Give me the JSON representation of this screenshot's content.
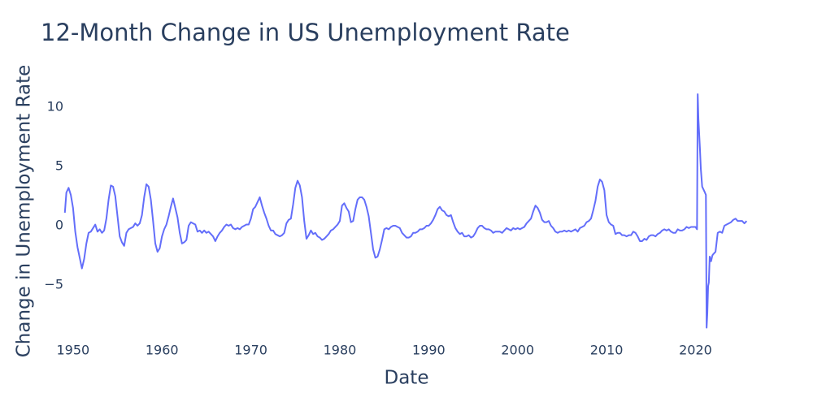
{
  "chart_data": {
    "type": "line",
    "title": "12-Month Change in US Unemployment Rate",
    "x_label": "Date",
    "y_label": "Change in Unemployment Rate",
    "color": "#636efa",
    "xlim": [
      1949.1,
      2025.9
    ],
    "ylim": [
      -8.7,
      11.2
    ],
    "xticks": [
      1950,
      1960,
      1970,
      1980,
      1990,
      2000,
      2010,
      2020
    ],
    "yticks": [
      10,
      5,
      0,
      {
        "value": -5,
        "label": "−5"
      }
    ],
    "grid": false,
    "x": [
      1949.08,
      1949.25,
      1949.5,
      1949.75,
      1950,
      1950.25,
      1950.5,
      1950.75,
      1951,
      1951.25,
      1951.5,
      1951.75,
      1952,
      1952.25,
      1952.5,
      1952.75,
      1953,
      1953.25,
      1953.5,
      1953.75,
      1954,
      1954.25,
      1954.5,
      1954.75,
      1955,
      1955.25,
      1955.5,
      1955.75,
      1956,
      1956.25,
      1956.5,
      1956.75,
      1957,
      1957.25,
      1957.5,
      1957.75,
      1958,
      1958.25,
      1958.5,
      1958.75,
      1959,
      1959.25,
      1959.5,
      1959.75,
      1960,
      1960.25,
      1960.5,
      1960.75,
      1961,
      1961.25,
      1961.5,
      1961.75,
      1962,
      1962.25,
      1962.5,
      1962.75,
      1963,
      1963.25,
      1963.5,
      1963.75,
      1964,
      1964.25,
      1964.5,
      1964.75,
      1965,
      1965.25,
      1965.5,
      1965.75,
      1966,
      1966.25,
      1966.5,
      1966.75,
      1967,
      1967.25,
      1967.5,
      1967.75,
      1968,
      1968.25,
      1968.5,
      1968.75,
      1969,
      1969.25,
      1969.5,
      1969.75,
      1970,
      1970.25,
      1970.5,
      1970.75,
      1971,
      1971.25,
      1971.5,
      1971.75,
      1972,
      1972.25,
      1972.5,
      1972.75,
      1973,
      1973.25,
      1973.5,
      1973.75,
      1974,
      1974.25,
      1974.5,
      1974.75,
      1975,
      1975.25,
      1975.5,
      1975.75,
      1976,
      1976.25,
      1976.5,
      1976.75,
      1977,
      1977.25,
      1977.5,
      1977.75,
      1978,
      1978.25,
      1978.5,
      1978.75,
      1979,
      1979.25,
      1979.5,
      1979.75,
      1980,
      1980.25,
      1980.5,
      1980.75,
      1981,
      1981.25,
      1981.5,
      1981.75,
      1982,
      1982.25,
      1982.5,
      1982.75,
      1983,
      1983.25,
      1983.5,
      1983.75,
      1984,
      1984.25,
      1984.5,
      1984.75,
      1985,
      1985.25,
      1985.5,
      1985.75,
      1986,
      1986.25,
      1986.5,
      1986.75,
      1987,
      1987.25,
      1987.5,
      1987.75,
      1988,
      1988.25,
      1988.5,
      1988.75,
      1989,
      1989.25,
      1989.5,
      1989.75,
      1990,
      1990.25,
      1990.5,
      1990.75,
      1991,
      1991.25,
      1991.5,
      1991.75,
      1992,
      1992.25,
      1992.5,
      1992.75,
      1993,
      1993.25,
      1993.5,
      1993.75,
      1994,
      1994.25,
      1994.5,
      1994.75,
      1995,
      1995.25,
      1995.5,
      1995.75,
      1996,
      1996.25,
      1996.5,
      1996.75,
      1997,
      1997.25,
      1997.5,
      1997.75,
      1998,
      1998.25,
      1998.5,
      1998.75,
      1999,
      1999.25,
      1999.5,
      1999.75,
      2000,
      2000.25,
      2000.5,
      2000.75,
      2001,
      2001.25,
      2001.5,
      2001.75,
      2002,
      2002.25,
      2002.5,
      2002.75,
      2003,
      2003.25,
      2003.5,
      2003.75,
      2004,
      2004.25,
      2004.5,
      2004.75,
      2005,
      2005.25,
      2005.5,
      2005.75,
      2006,
      2006.25,
      2006.5,
      2006.75,
      2007,
      2007.25,
      2007.5,
      2007.75,
      2008,
      2008.25,
      2008.5,
      2008.75,
      2009,
      2009.25,
      2009.5,
      2009.75,
      2010,
      2010.25,
      2010.5,
      2010.75,
      2011,
      2011.25,
      2011.5,
      2011.75,
      2012,
      2012.25,
      2012.5,
      2012.75,
      2013,
      2013.25,
      2013.5,
      2013.75,
      2014,
      2014.25,
      2014.5,
      2014.75,
      2015,
      2015.25,
      2015.5,
      2015.75,
      2016,
      2016.25,
      2016.5,
      2016.75,
      2017,
      2017.25,
      2017.5,
      2017.75,
      2018,
      2018.25,
      2018.5,
      2018.75,
      2019,
      2019.25,
      2019.5,
      2019.75,
      2020,
      2020.17,
      2020.25,
      2020.33,
      2020.5,
      2020.6,
      2020.75,
      2021,
      2021.17,
      2021.25,
      2021.33,
      2021.42,
      2021.5,
      2021.6,
      2021.75,
      2021.9,
      2022,
      2022.25,
      2022.5,
      2022.75,
      2023,
      2023.25,
      2023.5,
      2023.75,
      2024,
      2024.25,
      2024.5,
      2024.75,
      2025,
      2025.25,
      2025.5,
      2025.75
    ],
    "values": [
      1.1,
      2.8,
      3.2,
      2.6,
      1.5,
      -0.5,
      -1.8,
      -2.7,
      -3.6,
      -2.8,
      -1.5,
      -0.6,
      -0.5,
      -0.2,
      0.1,
      -0.5,
      -0.3,
      -0.6,
      -0.4,
      0.6,
      2.2,
      3.4,
      3.3,
      2.5,
      0.8,
      -0.9,
      -1.4,
      -1.7,
      -0.6,
      -0.3,
      -0.2,
      -0.1,
      0.2,
      0.0,
      0.2,
      0.9,
      2.4,
      3.5,
      3.3,
      2.2,
      0.4,
      -1.5,
      -2.2,
      -1.9,
      -0.9,
      -0.3,
      0.1,
      0.8,
      1.6,
      2.3,
      1.5,
      0.7,
      -0.6,
      -1.5,
      -1.4,
      -1.2,
      0.0,
      0.3,
      0.2,
      0.1,
      -0.5,
      -0.4,
      -0.6,
      -0.4,
      -0.6,
      -0.5,
      -0.7,
      -0.9,
      -1.3,
      -0.9,
      -0.6,
      -0.4,
      -0.1,
      0.1,
      0.0,
      0.1,
      -0.2,
      -0.3,
      -0.2,
      -0.3,
      -0.1,
      0.0,
      0.1,
      0.1,
      0.6,
      1.4,
      1.6,
      2.0,
      2.4,
      1.7,
      1.1,
      0.6,
      0.0,
      -0.4,
      -0.4,
      -0.7,
      -0.8,
      -0.9,
      -0.8,
      -0.6,
      0.2,
      0.5,
      0.6,
      1.8,
      3.2,
      3.8,
      3.4,
      2.4,
      0.4,
      -1.1,
      -0.8,
      -0.4,
      -0.7,
      -0.6,
      -0.9,
      -1.0,
      -1.2,
      -1.1,
      -0.9,
      -0.7,
      -0.4,
      -0.3,
      -0.1,
      0.1,
      0.4,
      1.7,
      1.9,
      1.5,
      1.2,
      0.3,
      0.4,
      1.4,
      2.2,
      2.4,
      2.4,
      2.2,
      1.6,
      0.8,
      -0.6,
      -2.0,
      -2.7,
      -2.6,
      -2.0,
      -1.2,
      -0.3,
      -0.2,
      -0.3,
      -0.1,
      0.0,
      0.0,
      -0.1,
      -0.2,
      -0.6,
      -0.8,
      -1.0,
      -1.0,
      -0.9,
      -0.6,
      -0.6,
      -0.5,
      -0.3,
      -0.3,
      -0.2,
      0.0,
      0.0,
      0.2,
      0.5,
      0.9,
      1.4,
      1.6,
      1.3,
      1.2,
      0.9,
      0.8,
      0.9,
      0.3,
      -0.2,
      -0.5,
      -0.7,
      -0.6,
      -0.9,
      -0.9,
      -0.8,
      -1.0,
      -0.9,
      -0.6,
      -0.2,
      0.0,
      0.0,
      -0.2,
      -0.3,
      -0.3,
      -0.4,
      -0.6,
      -0.5,
      -0.5,
      -0.5,
      -0.6,
      -0.4,
      -0.2,
      -0.3,
      -0.4,
      -0.2,
      -0.3,
      -0.2,
      -0.3,
      -0.2,
      -0.1,
      0.2,
      0.4,
      0.6,
      1.2,
      1.7,
      1.5,
      1.1,
      0.5,
      0.3,
      0.3,
      0.4,
      0.0,
      -0.2,
      -0.5,
      -0.6,
      -0.5,
      -0.5,
      -0.4,
      -0.5,
      -0.4,
      -0.5,
      -0.4,
      -0.3,
      -0.5,
      -0.2,
      -0.1,
      0.0,
      0.3,
      0.4,
      0.6,
      1.3,
      2.1,
      3.3,
      3.9,
      3.7,
      3.0,
      0.9,
      0.3,
      0.1,
      0.0,
      -0.7,
      -0.6,
      -0.6,
      -0.8,
      -0.8,
      -0.9,
      -0.8,
      -0.8,
      -0.5,
      -0.6,
      -0.9,
      -1.3,
      -1.3,
      -1.1,
      -1.2,
      -0.9,
      -0.8,
      -0.8,
      -0.9,
      -0.7,
      -0.6,
      -0.4,
      -0.3,
      -0.4,
      -0.3,
      -0.5,
      -0.6,
      -0.6,
      -0.3,
      -0.4,
      -0.4,
      -0.3,
      -0.1,
      -0.2,
      -0.1,
      -0.1,
      -0.1,
      -0.3,
      11.1,
      9.0,
      6.5,
      4.8,
      3.3,
      2.9,
      2.6,
      -8.6,
      -7.4,
      -5.1,
      -4.8,
      -2.6,
      -3.0,
      -2.5,
      -2.4,
      -2.2,
      -0.6,
      -0.5,
      -0.6,
      0.0,
      0.1,
      0.2,
      0.3,
      0.5,
      0.6,
      0.4,
      0.4,
      0.4,
      0.2,
      0.4
    ]
  }
}
